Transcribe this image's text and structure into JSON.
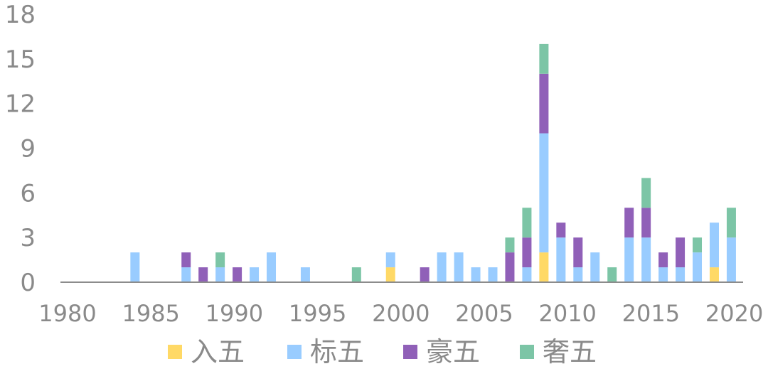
{
  "chart_data": {
    "type": "bar",
    "stacked": true,
    "title": "",
    "xlabel": "",
    "ylabel": "",
    "ylim": [
      0,
      18
    ],
    "yticks": [
      "0",
      "3",
      "6",
      "9",
      "12",
      "15",
      "18"
    ],
    "xticks": [
      "1980",
      "1985",
      "1990",
      "1995",
      "2000",
      "2005",
      "2010",
      "2015",
      "2020"
    ],
    "xrange": [
      1980,
      2020
    ],
    "grid": false,
    "legend_position": "bottom",
    "categories": [
      1984,
      1987,
      1988,
      1989,
      1990,
      1991,
      1992,
      1994,
      1997,
      1999,
      2001,
      2002,
      2003,
      2004,
      2005,
      2006,
      2007,
      2008,
      2009,
      2010,
      2011,
      2012,
      2013,
      2014,
      2015,
      2016,
      2017,
      2018,
      2019
    ],
    "series": [
      {
        "name": "入五",
        "color": "#FFD966",
        "values": [
          0,
          0,
          0,
          0,
          0,
          0,
          0,
          0,
          0,
          1,
          0,
          0,
          0,
          0,
          0,
          0,
          0,
          2,
          0,
          0,
          0,
          0,
          0,
          0,
          0,
          0,
          0,
          1,
          0
        ]
      },
      {
        "name": "标五",
        "color": "#99CCFF",
        "values": [
          2,
          1,
          0,
          1,
          0,
          1,
          2,
          1,
          0,
          1,
          0,
          2,
          2,
          1,
          1,
          0,
          1,
          8,
          3,
          1,
          2,
          0,
          3,
          3,
          1,
          1,
          2,
          3,
          3
        ]
      },
      {
        "name": "豪五",
        "color": "#9060B8",
        "values": [
          0,
          1,
          1,
          0,
          1,
          0,
          0,
          0,
          0,
          0,
          1,
          0,
          0,
          0,
          0,
          2,
          2,
          4,
          1,
          2,
          0,
          0,
          2,
          2,
          1,
          2,
          0,
          0,
          0
        ]
      },
      {
        "name": "奢五",
        "color": "#7CC5A6",
        "values": [
          0,
          0,
          0,
          1,
          0,
          0,
          0,
          0,
          1,
          0,
          0,
          0,
          0,
          0,
          0,
          1,
          2,
          2,
          0,
          0,
          0,
          1,
          0,
          2,
          0,
          0,
          1,
          0,
          2
        ]
      }
    ]
  }
}
